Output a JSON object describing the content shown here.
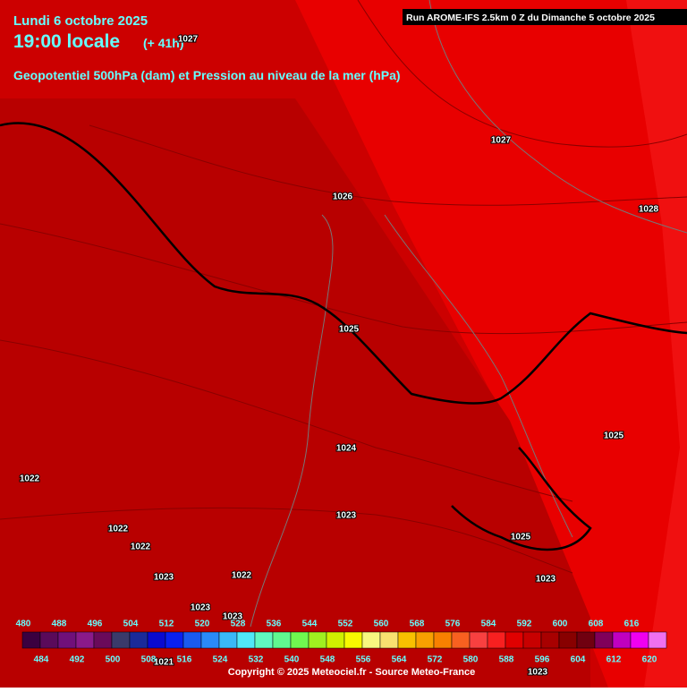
{
  "header": {
    "date": "Lundi 6 octobre 2025",
    "time": "19:00 locale",
    "lead": "(+ 41h)",
    "subtitle": "Geopotentiel 500hPa (dam) et Pression au niveau de la mer (hPa)",
    "run": "Run AROME-IFS 2.5km 0 Z du Dimanche 5 octobre 2025"
  },
  "isobar_labels": [
    1027,
    1027,
    1026,
    1028,
    1025,
    1025,
    1024,
    1022,
    1023,
    1022,
    1025,
    1022,
    1023,
    1022,
    1023,
    1023,
    1023,
    1021,
    1023
  ],
  "scale": {
    "values": [
      480,
      484,
      488,
      492,
      496,
      500,
      504,
      508,
      512,
      516,
      520,
      524,
      528,
      532,
      536,
      540,
      544,
      548,
      552,
      556,
      560,
      564,
      568,
      572,
      576,
      580,
      584,
      588,
      592,
      596,
      600,
      604,
      608,
      612,
      616,
      620
    ],
    "colors": [
      "#3a0040",
      "#5a0a5a",
      "#70107a",
      "#8a1a8a",
      "#6a0a5a",
      "#3a3a6a",
      "#1a2a9a",
      "#0a0ad0",
      "#0a20f0",
      "#1a5af0",
      "#2a8af8",
      "#3ab8f8",
      "#50e8f8",
      "#60f8c0",
      "#60f890",
      "#70f850",
      "#a0f020",
      "#d0f000",
      "#f8f800",
      "#f8f880",
      "#f8e070",
      "#f8c000",
      "#f8a000",
      "#f88000",
      "#f86020",
      "#f84040",
      "#f82020",
      "#e00000",
      "#c80000",
      "#a80000",
      "#880000",
      "#700010",
      "#80005a",
      "#c000c0",
      "#f000f0",
      "#f070f0"
    ]
  },
  "footer": {
    "copyright": "Copyright © 2025 Meteociel.fr - Source Meteo-France"
  }
}
